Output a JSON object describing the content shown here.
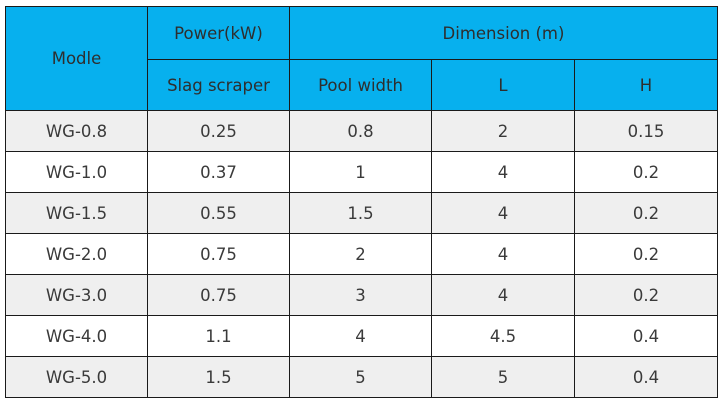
{
  "table": {
    "headers": {
      "model": "Modle",
      "power_group": "Power(kW)",
      "dimension_group": "Dimension (m)",
      "slag_scraper": "Slag scraper",
      "pool_width": "Pool width",
      "l": "L",
      "h": "H"
    },
    "rows": [
      [
        "WG-0.8",
        "0.25",
        "0.8",
        "2",
        "0.15"
      ],
      [
        "WG-1.0",
        "0.37",
        "1",
        "4",
        "0.2"
      ],
      [
        "WG-1.5",
        "0.55",
        "1.5",
        "4",
        "0.2"
      ],
      [
        "WG-2.0",
        "0.75",
        "2",
        "4",
        "0.2"
      ],
      [
        "WG-3.0",
        "0.75",
        "3",
        "4",
        "0.2"
      ],
      [
        "WG-4.0",
        "1.1",
        "4",
        "4.5",
        "0.4"
      ],
      [
        "WG-5.0",
        "1.5",
        "5",
        "5",
        "0.4"
      ]
    ]
  },
  "colors": {
    "header_bg": "#07b0ee",
    "row_alt_bg": "#efefef",
    "border": "#1a1a1a"
  }
}
